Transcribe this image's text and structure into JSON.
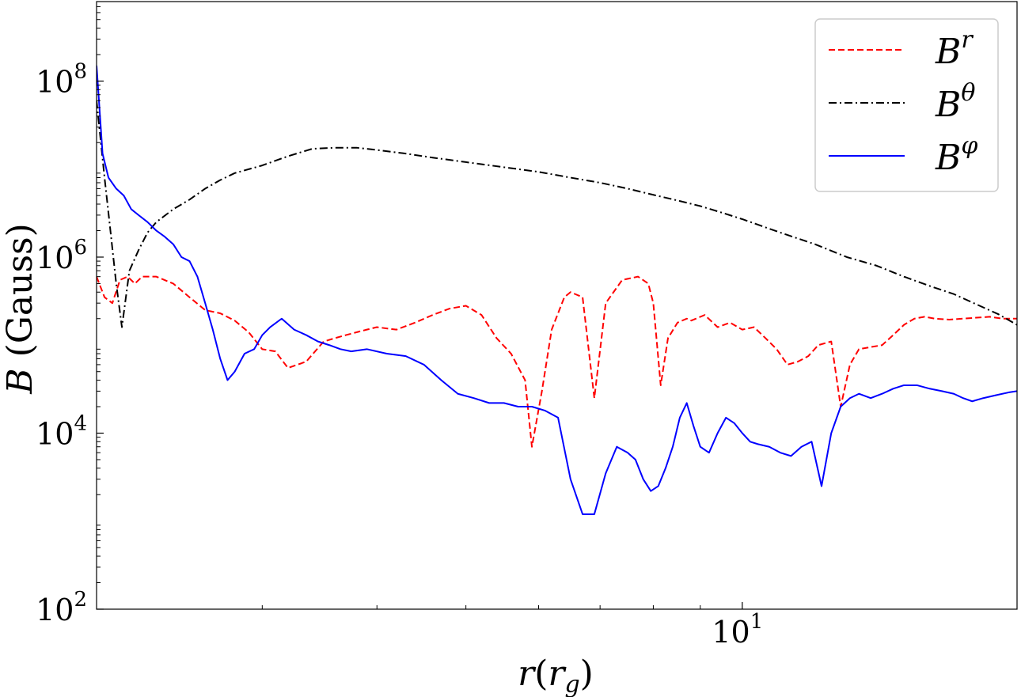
{
  "chart_data": {
    "type": "line",
    "title": "",
    "xlabel": {
      "base": "r",
      "paren_open": "(",
      "paren_var": "r",
      "paren_sub": "g",
      "paren_close": ")"
    },
    "ylabel": {
      "var": "B",
      "unit": " (Gauss)"
    },
    "xscale": "log",
    "yscale": "log",
    "xlim": [
      1.98,
      19.92
    ],
    "ylim": [
      100,
      800000000
    ],
    "x_major_ticks": [
      {
        "value": 10,
        "base": "10",
        "exp": "1"
      }
    ],
    "x_minor_ticks": [
      3,
      4,
      5,
      6,
      7,
      8,
      9
    ],
    "y_major_ticks": [
      {
        "value": 100,
        "base": "10",
        "exp": "2"
      },
      {
        "value": 10000,
        "base": "10",
        "exp": "4"
      },
      {
        "value": 1000000,
        "base": "10",
        "exp": "6"
      },
      {
        "value": 100000000,
        "base": "10",
        "exp": "8"
      }
    ],
    "grid": false,
    "legend_position": "top-right",
    "series": [
      {
        "name": "B^r",
        "label_base": "B",
        "label_sup": "r",
        "color": "#ff0000",
        "style": "dashed",
        "x": [
          1.98,
          2.02,
          2.06,
          2.1,
          2.14,
          2.18,
          2.22,
          2.3,
          2.4,
          2.5,
          2.6,
          2.7,
          2.8,
          2.9,
          3.0,
          3.1,
          3.2,
          3.35,
          3.5,
          3.6,
          3.7,
          3.8,
          3.9,
          4.0,
          4.2,
          4.4,
          4.6,
          4.8,
          5.0,
          5.2,
          5.4,
          5.6,
          5.8,
          5.9,
          6.05,
          6.2,
          6.4,
          6.5,
          6.7,
          6.9,
          7.1,
          7.4,
          7.7,
          7.9,
          8.0,
          8.15,
          8.3,
          8.5,
          8.7,
          8.8,
          9.1,
          9.4,
          9.7,
          10.0,
          10.3,
          10.6,
          10.9,
          11.2,
          11.5,
          11.8,
          12.1,
          12.5,
          12.8,
          13.1,
          13.4,
          13.8,
          14.2,
          14.6,
          15.0,
          15.4,
          15.8,
          16.2,
          16.8,
          17.4,
          18.0,
          18.6,
          19.2,
          19.92
        ],
        "y": [
          600000,
          350000,
          300000,
          550000,
          600000,
          500000,
          600000,
          600000,
          500000,
          350000,
          250000,
          230000,
          190000,
          140000,
          90000,
          85000,
          55000,
          65000,
          110000,
          120000,
          130000,
          140000,
          150000,
          160000,
          150000,
          180000,
          220000,
          260000,
          280000,
          220000,
          120000,
          80000,
          40000,
          7000,
          30000,
          150000,
          350000,
          400000,
          350000,
          25000,
          300000,
          550000,
          600000,
          500000,
          300000,
          35000,
          120000,
          180000,
          200000,
          190000,
          220000,
          160000,
          180000,
          150000,
          160000,
          120000,
          90000,
          60000,
          65000,
          75000,
          100000,
          110000,
          20000,
          60000,
          90000,
          95000,
          100000,
          130000,
          170000,
          200000,
          210000,
          200000,
          195000,
          200000,
          205000,
          210000,
          200000,
          200000
        ]
      },
      {
        "name": "B^θ",
        "label_base": "B",
        "label_sup": "θ",
        "color": "#000000",
        "style": "dashdot",
        "x": [
          1.98,
          2.02,
          2.05,
          2.08,
          2.11,
          2.15,
          2.2,
          2.25,
          2.3,
          2.4,
          2.5,
          2.6,
          2.7,
          2.8,
          3.0,
          3.2,
          3.4,
          3.6,
          3.8,
          4.0,
          4.3,
          4.6,
          5.0,
          5.5,
          6.0,
          6.5,
          7.0,
          7.5,
          8.0,
          8.5,
          9.0,
          9.5,
          10.0,
          11.0,
          12.0,
          13.0,
          14.0,
          15.0,
          16.0,
          17.0,
          18.0,
          19.0,
          19.92
        ],
        "y": [
          60000000,
          8000000,
          2000000,
          500000,
          160000,
          700000,
          1200000,
          1900000,
          2500000,
          3500000,
          4500000,
          6000000,
          7500000,
          9000000,
          11000000,
          14000000,
          17000000,
          17500000,
          17500000,
          16500000,
          15000000,
          13500000,
          12000000,
          10500000,
          9300000,
          8000000,
          7000000,
          6000000,
          5100000,
          4400000,
          3800000,
          3200000,
          2700000,
          1900000,
          1400000,
          1000000,
          800000,
          600000,
          470000,
          380000,
          290000,
          225000,
          170000
        ]
      },
      {
        "name": "B^φ",
        "label_base": "B",
        "label_sup": "φ",
        "color": "#0000ff",
        "style": "solid",
        "x": [
          1.98,
          2.01,
          2.04,
          2.08,
          2.12,
          2.16,
          2.2,
          2.25,
          2.3,
          2.35,
          2.4,
          2.45,
          2.5,
          2.55,
          2.6,
          2.65,
          2.7,
          2.75,
          2.8,
          2.87,
          2.94,
          3.0,
          3.06,
          3.15,
          3.25,
          3.35,
          3.45,
          3.55,
          3.65,
          3.75,
          3.9,
          4.1,
          4.3,
          4.5,
          4.7,
          4.9,
          5.1,
          5.3,
          5.5,
          5.7,
          5.9,
          6.1,
          6.3,
          6.5,
          6.7,
          6.9,
          7.1,
          7.3,
          7.5,
          7.65,
          7.8,
          7.95,
          8.1,
          8.25,
          8.4,
          8.55,
          8.7,
          8.85,
          9.0,
          9.2,
          9.4,
          9.6,
          9.8,
          10.0,
          10.2,
          10.4,
          10.7,
          11.0,
          11.3,
          11.6,
          11.9,
          12.2,
          12.5,
          12.8,
          13.1,
          13.4,
          13.8,
          14.2,
          14.6,
          15.0,
          15.5,
          16.0,
          16.5,
          17.0,
          17.4,
          17.8,
          18.3,
          18.9,
          19.5,
          19.92
        ],
        "y": [
          150000000,
          15000000,
          8000000,
          6000000,
          5000000,
          3500000,
          3000000,
          2500000,
          2000000,
          1700000,
          1400000,
          1000000,
          900000,
          600000,
          300000,
          150000,
          70000,
          40000,
          50000,
          80000,
          90000,
          130000,
          160000,
          200000,
          150000,
          130000,
          110000,
          100000,
          90000,
          85000,
          90000,
          80000,
          75000,
          60000,
          40000,
          28000,
          25000,
          22000,
          22000,
          20000,
          20000,
          18000,
          15000,
          3000,
          1200,
          1200,
          3500,
          7000,
          6000,
          5000,
          3000,
          2200,
          2500,
          4000,
          7000,
          15000,
          22000,
          12000,
          7000,
          6000,
          10000,
          15000,
          13000,
          10000,
          8000,
          7500,
          7000,
          6000,
          5500,
          7000,
          8000,
          2500,
          10000,
          20000,
          25000,
          28000,
          25000,
          28000,
          32000,
          35000,
          35000,
          32000,
          30000,
          28000,
          25000,
          23000,
          25000,
          27000,
          29000,
          30000
        ]
      }
    ]
  }
}
